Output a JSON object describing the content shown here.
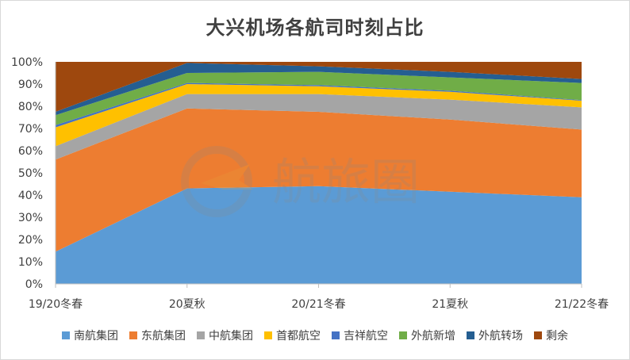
{
  "chart_data": {
    "type": "area",
    "stacked": true,
    "percent": true,
    "title": "大兴机场各航司时刻占比",
    "categories": [
      "19/20冬春",
      "20夏秋",
      "20/21冬春",
      "21夏秋",
      "21/22冬春"
    ],
    "ylim": [
      0,
      100
    ],
    "yticks": [
      "0%",
      "10%",
      "20%",
      "30%",
      "40%",
      "50%",
      "60%",
      "70%",
      "80%",
      "90%",
      "100%"
    ],
    "legend_position": "bottom",
    "grid": false,
    "series": [
      {
        "name": "南航集团",
        "color": "#5b9bd5",
        "values": [
          14.5,
          43,
          44,
          41.5,
          39
        ]
      },
      {
        "name": "东航集团",
        "color": "#ed7d31",
        "values": [
          41.5,
          36,
          33.5,
          32.5,
          30.5
        ]
      },
      {
        "name": "中航集团",
        "color": "#a5a5a5",
        "values": [
          6,
          6.5,
          8,
          9,
          10
        ]
      },
      {
        "name": "首都航空",
        "color": "#ffc000",
        "values": [
          8.5,
          4.5,
          3.5,
          3.5,
          3
        ]
      },
      {
        "name": "吉祥航空",
        "color": "#4472c4",
        "values": [
          1,
          0.5,
          0.5,
          0.5,
          0.3
        ]
      },
      {
        "name": "外航新增",
        "color": "#70ad47",
        "values": [
          4.5,
          4.5,
          6,
          6,
          7.7
        ]
      },
      {
        "name": "外航转场",
        "color": "#255e91",
        "values": [
          1.5,
          4.5,
          2.5,
          2.5,
          1.8
        ]
      },
      {
        "name": "剩余",
        "color": "#9e480e",
        "values": [
          22.5,
          0.5,
          2,
          4.5,
          7.7
        ]
      }
    ]
  },
  "watermark": {
    "text": "航旅圈",
    "icon": "plane-logo-icon"
  }
}
